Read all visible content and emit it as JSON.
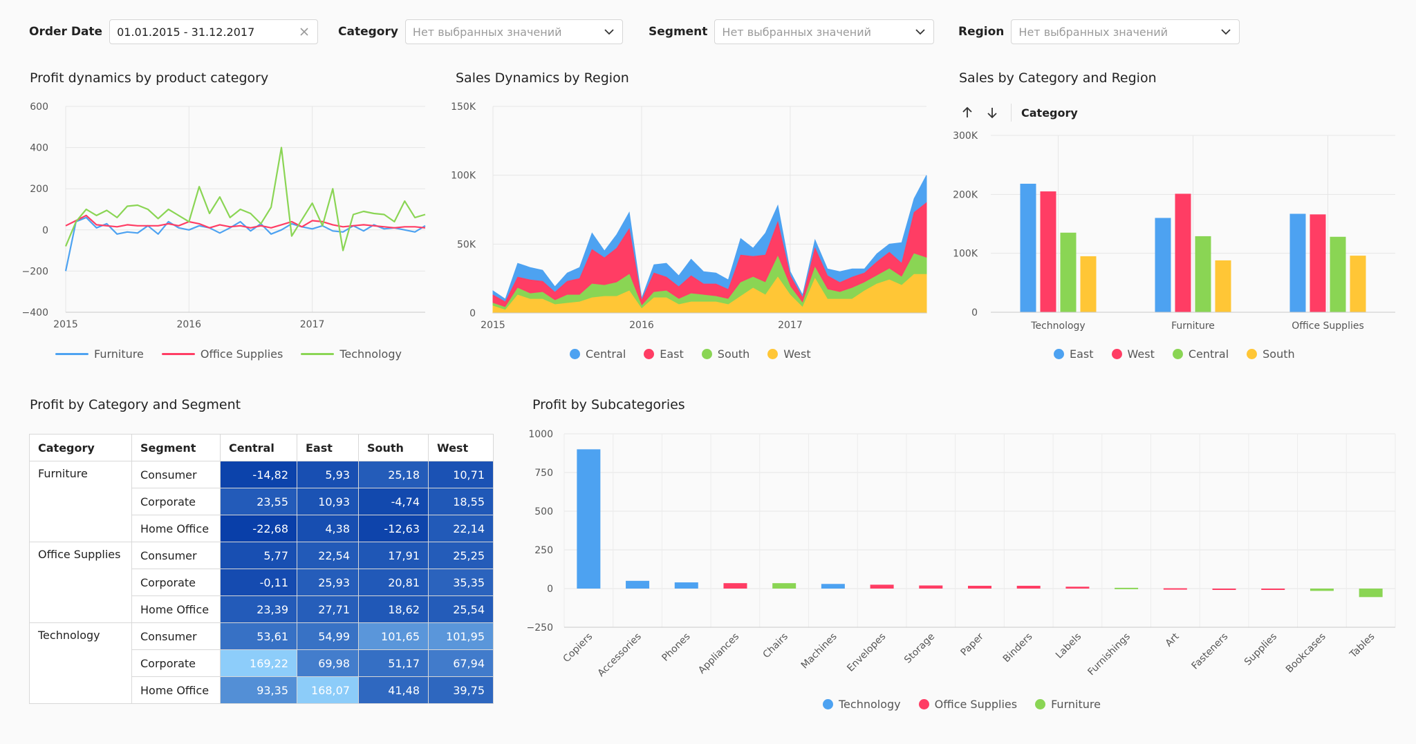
{
  "filters": {
    "order_date": {
      "label": "Order Date",
      "value": "01.01.2015 - 31.12.2017"
    },
    "category": {
      "label": "Category",
      "placeholder": "Нет выбранных значений"
    },
    "segment": {
      "label": "Segment",
      "placeholder": "Нет выбранных значений"
    },
    "region": {
      "label": "Region",
      "placeholder": "Нет выбранных значений"
    }
  },
  "icons": {
    "clear": "close-icon",
    "dropdown": "chevron-down-icon",
    "sort_asc": "arrow-up-icon",
    "sort_desc": "arrow-down-icon"
  },
  "colors": {
    "blue": "#4da2f1",
    "red": "#ff3d64",
    "green": "#8ad554",
    "yellow": "#ffc636"
  },
  "sort_bar": {
    "label": "Category"
  },
  "chart_data": [
    {
      "id": "profit-dynamics",
      "type": "line",
      "title": "Profit dynamics by product category",
      "x": [
        "2015",
        "",
        "",
        "",
        "",
        "",
        "",
        "",
        "",
        "",
        "",
        "",
        "2016",
        "",
        "",
        "",
        "",
        "",
        "",
        "",
        "",
        "",
        "",
        "",
        "2017",
        "",
        "",
        "",
        "",
        "",
        "",
        "",
        "",
        "",
        "",
        ""
      ],
      "x_ticks": [
        "2015",
        "2016",
        "2017"
      ],
      "ylim": [
        -400,
        600
      ],
      "y_ticks": [
        "600",
        "400",
        "200",
        "0",
        "−200",
        "−400"
      ],
      "series": [
        {
          "name": "Furniture",
          "color": "#4da2f1",
          "values": [
            -200,
            40,
            60,
            10,
            30,
            -20,
            -10,
            -15,
            20,
            -20,
            40,
            10,
            0,
            20,
            10,
            -15,
            10,
            40,
            -5,
            30,
            -20,
            0,
            30,
            15,
            5,
            20,
            -5,
            -10,
            20,
            -5,
            25,
            5,
            10,
            0,
            -10,
            20
          ]
        },
        {
          "name": "Office Supplies",
          "color": "#ff3d64",
          "values": [
            20,
            45,
            70,
            25,
            20,
            15,
            25,
            20,
            20,
            20,
            30,
            20,
            40,
            30,
            10,
            25,
            15,
            20,
            10,
            20,
            10,
            25,
            40,
            15,
            45,
            40,
            25,
            15,
            20,
            25,
            20,
            15,
            10,
            15,
            15,
            10
          ]
        },
        {
          "name": "Technology",
          "color": "#8ad554",
          "values": [
            -80,
            40,
            100,
            70,
            95,
            60,
            115,
            120,
            100,
            55,
            100,
            70,
            40,
            210,
            80,
            160,
            60,
            100,
            80,
            30,
            110,
            400,
            -30,
            50,
            130,
            20,
            200,
            -100,
            75,
            90,
            80,
            75,
            40,
            140,
            60,
            75
          ]
        }
      ]
    },
    {
      "id": "sales-region",
      "type": "area",
      "title": "Sales Dynamics by Region",
      "x_ticks": [
        "2015",
        "2016",
        "2017"
      ],
      "ylim": [
        0,
        150000
      ],
      "y_ticks": [
        "150K",
        "100K",
        "50K",
        "0"
      ],
      "series": [
        {
          "name": "Central",
          "color": "#4da2f1",
          "values": [
            3000,
            2000,
            10000,
            9000,
            8000,
            4000,
            6000,
            8000,
            12000,
            5000,
            10000,
            12000,
            1500,
            6000,
            10000,
            8000,
            12000,
            9000,
            8000,
            7000,
            12000,
            6000,
            16000,
            12000,
            3000,
            2000,
            6000,
            5000,
            8000,
            6000,
            3000,
            6000,
            6000,
            15000,
            10000,
            20000
          ]
        },
        {
          "name": "East",
          "color": "#ff3d64",
          "values": [
            6000,
            4000,
            8000,
            10000,
            8000,
            6000,
            10000,
            12000,
            25000,
            20000,
            25000,
            33000,
            4000,
            14000,
            10000,
            9000,
            13000,
            8000,
            9000,
            7000,
            20000,
            15000,
            20000,
            25000,
            8000,
            4000,
            14000,
            10000,
            7000,
            8000,
            7000,
            10000,
            12000,
            10000,
            30000,
            40000
          ]
        },
        {
          "name": "South",
          "color": "#8ad554",
          "values": [
            2000,
            2000,
            5000,
            4000,
            5000,
            3000,
            6000,
            5000,
            10000,
            8000,
            10000,
            12000,
            2000,
            4000,
            5000,
            4000,
            6000,
            5000,
            4000,
            4000,
            10000,
            8000,
            9000,
            15000,
            6000,
            3000,
            8000,
            7000,
            5000,
            8000,
            6000,
            6000,
            8000,
            6000,
            15000,
            12000
          ]
        },
        {
          "name": "West",
          "color": "#ffc636",
          "values": [
            5000,
            2000,
            13000,
            10000,
            10000,
            6000,
            7000,
            8000,
            11000,
            12000,
            12000,
            16000,
            3000,
            11000,
            11000,
            6000,
            8000,
            8000,
            8000,
            6000,
            12000,
            18000,
            13000,
            26000,
            13000,
            4000,
            25000,
            10000,
            10000,
            10000,
            16000,
            21000,
            24000,
            20000,
            28000,
            28000
          ]
        }
      ]
    },
    {
      "id": "sales-cat-region",
      "type": "bar",
      "title": "Sales by Category and Region",
      "categories": [
        "Technology",
        "Furniture",
        "Office Supplies"
      ],
      "ylim": [
        0,
        300000
      ],
      "y_ticks": [
        "300K",
        "200K",
        "100K",
        "0"
      ],
      "series": [
        {
          "name": "East",
          "color": "#4da2f1",
          "values": [
            218000,
            160000,
            167000
          ]
        },
        {
          "name": "West",
          "color": "#ff3d64",
          "values": [
            205000,
            201000,
            166000
          ]
        },
        {
          "name": "Central",
          "color": "#8ad554",
          "values": [
            135000,
            129000,
            128000
          ]
        },
        {
          "name": "South",
          "color": "#ffc636",
          "values": [
            95000,
            88000,
            96000
          ]
        }
      ]
    },
    {
      "id": "profit-cat-segment",
      "type": "table",
      "title": "Profit by Category and Segment",
      "columns": [
        "Category",
        "Segment",
        "Central",
        "East",
        "South",
        "West"
      ],
      "groups": [
        {
          "category": "Furniture",
          "rows": [
            {
              "segment": "Consumer",
              "values": [
                "-14,82",
                "5,93",
                "25,18",
                "10,71"
              ]
            },
            {
              "segment": "Corporate",
              "values": [
                "23,55",
                "10,93",
                "-4,74",
                "18,55"
              ]
            },
            {
              "segment": "Home Office",
              "values": [
                "-22,68",
                "4,38",
                "-12,63",
                "22,14"
              ]
            }
          ]
        },
        {
          "category": "Office Supplies",
          "rows": [
            {
              "segment": "Consumer",
              "values": [
                "5,77",
                "22,54",
                "17,91",
                "25,25"
              ]
            },
            {
              "segment": "Corporate",
              "values": [
                "-0,11",
                "25,93",
                "20,81",
                "35,35"
              ]
            },
            {
              "segment": "Home Office",
              "values": [
                "23,39",
                "27,71",
                "18,62",
                "25,54"
              ]
            }
          ]
        },
        {
          "category": "Technology",
          "rows": [
            {
              "segment": "Consumer",
              "values": [
                "53,61",
                "54,99",
                "101,65",
                "101,95"
              ]
            },
            {
              "segment": "Corporate",
              "values": [
                "169,22",
                "69,98",
                "51,17",
                "67,94"
              ]
            },
            {
              "segment": "Home Office",
              "values": [
                "93,35",
                "168,07",
                "41,48",
                "39,75"
              ]
            }
          ]
        }
      ]
    },
    {
      "id": "profit-subcat",
      "type": "bar",
      "title": "Profit by Subcategories",
      "categories": [
        "Copiers",
        "Accessories",
        "Phones",
        "Appliances",
        "Chairs",
        "Machines",
        "Envelopes",
        "Storage",
        "Paper",
        "Binders",
        "Labels",
        "Furnishings",
        "Art",
        "Fasteners",
        "Supplies",
        "Bookcases",
        "Tables"
      ],
      "group": [
        "Technology",
        "Technology",
        "Technology",
        "Office Supplies",
        "Furniture",
        "Technology",
        "Office Supplies",
        "Office Supplies",
        "Office Supplies",
        "Office Supplies",
        "Office Supplies",
        "Furniture",
        "Office Supplies",
        "Office Supplies",
        "Office Supplies",
        "Furniture",
        "Furniture"
      ],
      "values": [
        900,
        50,
        40,
        35,
        35,
        30,
        25,
        20,
        18,
        18,
        12,
        5,
        2,
        -2,
        -8,
        -15,
        -55
      ],
      "ylim": [
        -250,
        1000
      ],
      "y_ticks": [
        "1000",
        "750",
        "500",
        "250",
        "0",
        "−250"
      ],
      "legend": [
        {
          "name": "Technology",
          "color": "#4da2f1"
        },
        {
          "name": "Office Supplies",
          "color": "#ff3d64"
        },
        {
          "name": "Furniture",
          "color": "#8ad554"
        }
      ]
    }
  ]
}
